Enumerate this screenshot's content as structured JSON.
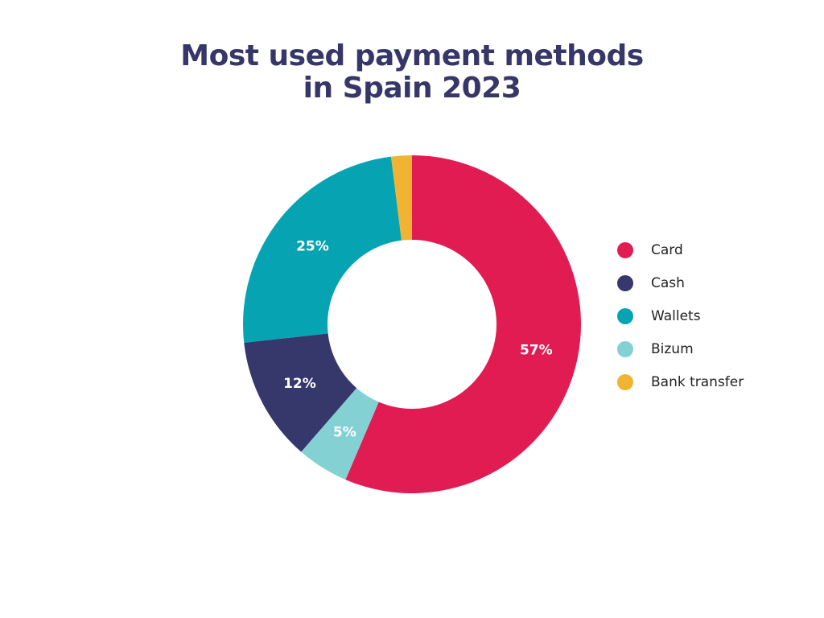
{
  "chart_data": {
    "type": "pie",
    "variant": "donut",
    "title": "Most used payment methods in Spain 2023",
    "title_lines": [
      "Most used payment methods",
      "in Spain 2023"
    ],
    "categories": [
      "Card",
      "Cash",
      "Wallets",
      "Bizum",
      "Bank transfer"
    ],
    "values": [
      57,
      12,
      25,
      5,
      2
    ],
    "data_labels": {
      "Card": "57%",
      "Cash": "12%",
      "Wallets": "25%",
      "Bizum": "5%"
    },
    "colors": {
      "Card": "#e01c52",
      "Cash": "#36376b",
      "Wallets": "#06a3b3",
      "Bizum": "#84d1d3",
      "Bank transfer": "#f0b332"
    },
    "draw_order": [
      "Card",
      "Bizum",
      "Cash",
      "Wallets",
      "Bank transfer"
    ],
    "legend_position": "right",
    "start_angle": "top",
    "direction": "clockwise"
  }
}
